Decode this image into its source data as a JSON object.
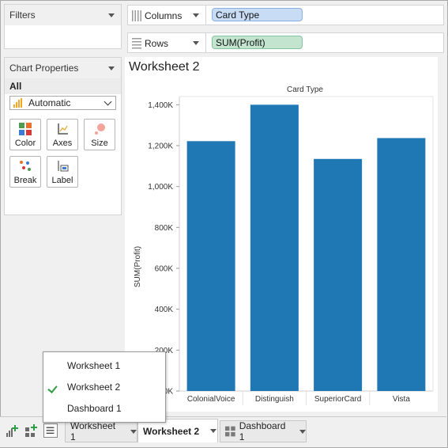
{
  "filters": {
    "title": "Filters"
  },
  "chart_properties": {
    "title": "Chart Properties",
    "scope": "All",
    "mark_type": "Automatic",
    "tiles": [
      {
        "label": "Color",
        "icon": "color-icon"
      },
      {
        "label": "Axes",
        "icon": "axes-icon"
      },
      {
        "label": "Size",
        "icon": "size-icon"
      },
      {
        "label": "Break",
        "icon": "break-icon"
      },
      {
        "label": "Label",
        "icon": "label-icon"
      }
    ]
  },
  "shelves": {
    "columns": {
      "label": "Columns",
      "pill": "Card Type"
    },
    "rows": {
      "label": "Rows",
      "pill": "SUM(Profit)"
    }
  },
  "worksheet": {
    "title": "Worksheet 2"
  },
  "colors": {
    "bar": "#1f77b4",
    "dimension_pill": "#c9dcf5",
    "measure_pill": "#c3e4cf",
    "check": "#2e9e44"
  },
  "chart_data": {
    "type": "bar",
    "title": "Card Type",
    "xlabel": "",
    "ylabel": "SUM(Profit)",
    "categories": [
      "ColonialVoice",
      "Distinguish",
      "SuperiorCard",
      "Vista"
    ],
    "values": [
      1222000,
      1400000,
      1135000,
      1237000
    ],
    "ylim": [
      0,
      1440000
    ],
    "yticks": [
      0,
      200000,
      400000,
      600000,
      800000,
      1000000,
      1200000,
      1400000
    ],
    "ytick_labels": [
      "0K",
      "200K",
      "400K",
      "600K",
      "800K",
      "1,000K",
      "1,200K",
      "1,400K"
    ],
    "grid": false,
    "legend": "none"
  },
  "sheet_menu": {
    "items": [
      {
        "label": "Worksheet 1",
        "checked": false
      },
      {
        "label": "Worksheet 2",
        "checked": true
      },
      {
        "label": "Dashboard 1",
        "checked": false
      }
    ]
  },
  "tabs": [
    {
      "label": "Worksheet 1",
      "active": false
    },
    {
      "label": "Worksheet 2",
      "active": true
    },
    {
      "label": "Dashboard 1",
      "active": false
    }
  ]
}
